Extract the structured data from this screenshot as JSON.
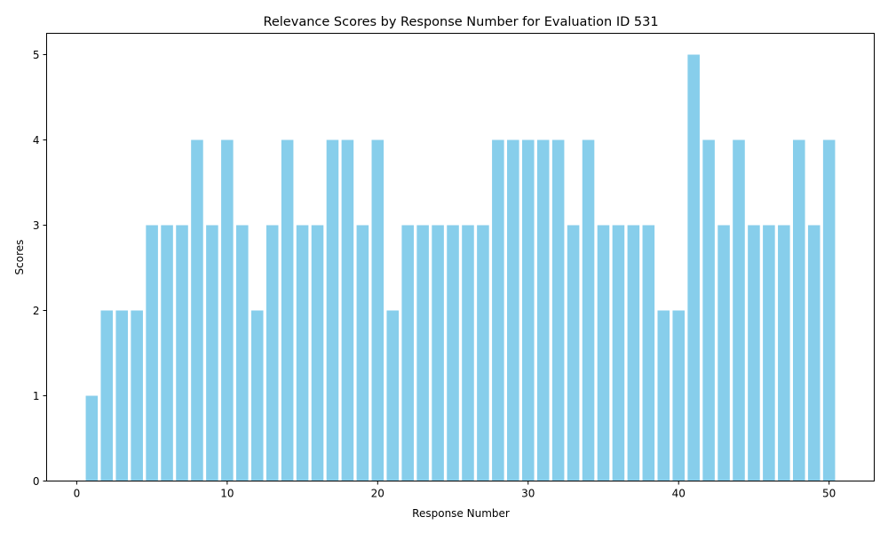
{
  "chart_data": {
    "type": "bar",
    "title": "Relevance Scores by Response Number for Evaluation ID 531",
    "xlabel": "Response Number",
    "ylabel": "Scores",
    "x": [
      1,
      2,
      3,
      4,
      5,
      6,
      7,
      8,
      9,
      10,
      11,
      12,
      13,
      14,
      15,
      16,
      17,
      18,
      19,
      20,
      21,
      22,
      23,
      24,
      25,
      26,
      27,
      28,
      29,
      30,
      31,
      32,
      33,
      34,
      35,
      36,
      37,
      38,
      39,
      40,
      41,
      42,
      43,
      44,
      45,
      46,
      47,
      48,
      49,
      50
    ],
    "values": [
      1,
      2,
      2,
      2,
      3,
      3,
      3,
      4,
      3,
      4,
      3,
      2,
      3,
      4,
      3,
      3,
      4,
      4,
      3,
      4,
      2,
      3,
      3,
      3,
      3,
      3,
      3,
      4,
      4,
      4,
      4,
      4,
      3,
      4,
      3,
      3,
      3,
      3,
      2,
      2,
      5,
      4,
      3,
      4,
      3,
      3,
      3,
      4,
      3,
      4
    ],
    "xlim": [
      -2.0,
      53.0
    ],
    "ylim": [
      0,
      5.25
    ],
    "xticks": [
      "0",
      "10",
      "20",
      "30",
      "40",
      "50"
    ],
    "yticks": [
      "0",
      "1",
      "2",
      "3",
      "4",
      "5"
    ],
    "bar_color": "#87ceeb",
    "grid": false,
    "legend": "none"
  }
}
